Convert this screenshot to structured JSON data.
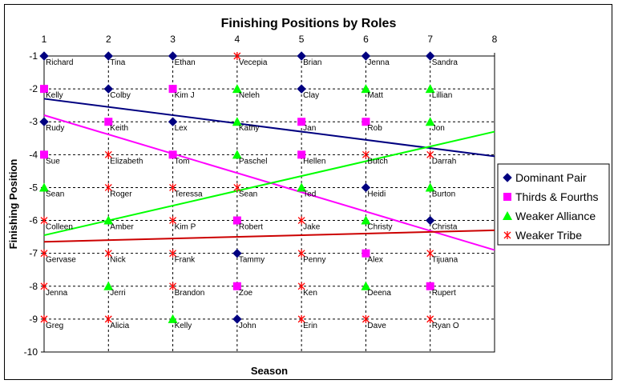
{
  "chart_data": {
    "type": "scatter",
    "title": "Finishing Positions by Roles",
    "xlabel": "Season",
    "ylabel": "Finishing Position",
    "xlim": [
      1,
      8
    ],
    "ylim": [
      -10,
      -1
    ],
    "x_ticks": [
      "1",
      "2",
      "3",
      "4",
      "5",
      "6",
      "7",
      "8"
    ],
    "y_ticks": [
      "-1",
      "-2",
      "-3",
      "-4",
      "-5",
      "-6",
      "-7",
      "-8",
      "-9",
      "-10"
    ],
    "grid": true,
    "legend_position": "right",
    "series": [
      {
        "name": "Dominant Pair",
        "marker": "diamond",
        "color": "#000080",
        "points": [
          {
            "x": 1,
            "y": -1,
            "label": "Richard"
          },
          {
            "x": 2,
            "y": -1,
            "label": "Tina"
          },
          {
            "x": 3,
            "y": -1,
            "label": "Ethan"
          },
          {
            "x": 5,
            "y": -1,
            "label": "Brian"
          },
          {
            "x": 6,
            "y": -1,
            "label": "Jenna"
          },
          {
            "x": 7,
            "y": -1,
            "label": "Sandra"
          },
          {
            "x": 2,
            "y": -2,
            "label": "Colby"
          },
          {
            "x": 5,
            "y": -2,
            "label": "Clay"
          },
          {
            "x": 1,
            "y": -3,
            "label": "Rudy"
          },
          {
            "x": 3,
            "y": -3,
            "label": "Lex"
          },
          {
            "x": 6,
            "y": -5,
            "label": "Heidi"
          },
          {
            "x": 7,
            "y": -6,
            "label": "Christa"
          },
          {
            "x": 4,
            "y": -7,
            "label": "Tammy"
          },
          {
            "x": 4,
            "y": -9,
            "label": "John"
          }
        ],
        "trend": [
          -2.3,
          -4.05
        ]
      },
      {
        "name": "Thirds & Fourths",
        "marker": "square",
        "color": "#FF00FF",
        "points": [
          {
            "x": 1,
            "y": -2,
            "label": "Kelly"
          },
          {
            "x": 3,
            "y": -2,
            "label": "Kim J"
          },
          {
            "x": 2,
            "y": -3,
            "label": "Keith"
          },
          {
            "x": 5,
            "y": -3,
            "label": "Jan"
          },
          {
            "x": 6,
            "y": -3,
            "label": "Rob"
          },
          {
            "x": 1,
            "y": -4,
            "label": "Sue"
          },
          {
            "x": 3,
            "y": -4,
            "label": "Tom"
          },
          {
            "x": 5,
            "y": -4,
            "label": "Hellen"
          },
          {
            "x": 4,
            "y": -6,
            "label": "Robert"
          },
          {
            "x": 6,
            "y": -7,
            "label": "Alex"
          },
          {
            "x": 4,
            "y": -8,
            "label": "Zoe"
          },
          {
            "x": 7,
            "y": -8,
            "label": "Rupert"
          }
        ],
        "trend": [
          -2.8,
          -6.9
        ]
      },
      {
        "name": "Weaker Alliance",
        "marker": "triangle",
        "color": "#00FF00",
        "points": [
          {
            "x": 4,
            "y": -2,
            "label": "Neleh"
          },
          {
            "x": 6,
            "y": -2,
            "label": "Matt"
          },
          {
            "x": 7,
            "y": -2,
            "label": "Lillian"
          },
          {
            "x": 4,
            "y": -3,
            "label": "Kathy"
          },
          {
            "x": 7,
            "y": -3,
            "label": "Jon"
          },
          {
            "x": 4,
            "y": -4,
            "label": "Paschel"
          },
          {
            "x": 1,
            "y": -5,
            "label": "Sean"
          },
          {
            "x": 5,
            "y": -5,
            "label": "Ted"
          },
          {
            "x": 7,
            "y": -5,
            "label": "Burton"
          },
          {
            "x": 2,
            "y": -6,
            "label": "Amber"
          },
          {
            "x": 6,
            "y": -6,
            "label": "Christy"
          },
          {
            "x": 2,
            "y": -8,
            "label": "Jerri"
          },
          {
            "x": 6,
            "y": -8,
            "label": "Deena"
          },
          {
            "x": 3,
            "y": -9,
            "label": "Kelly"
          }
        ],
        "trend": [
          -6.45,
          -3.3
        ]
      },
      {
        "name": "Weaker Tribe",
        "marker": "asterisk",
        "color": "#FF0000",
        "points": [
          {
            "x": 4,
            "y": -1,
            "label": "Vecepia"
          },
          {
            "x": 2,
            "y": -4,
            "label": "Elizabeth"
          },
          {
            "x": 6,
            "y": -4,
            "label": "Butch"
          },
          {
            "x": 7,
            "y": -4,
            "label": "Darrah"
          },
          {
            "x": 2,
            "y": -5,
            "label": "Roger"
          },
          {
            "x": 3,
            "y": -5,
            "label": "Teressa"
          },
          {
            "x": 4,
            "y": -5,
            "label": "Sean"
          },
          {
            "x": 1,
            "y": -6,
            "label": "Colleen"
          },
          {
            "x": 3,
            "y": -6,
            "label": "Kim P"
          },
          {
            "x": 5,
            "y": -6,
            "label": "Jake"
          },
          {
            "x": 1,
            "y": -7,
            "label": "Gervase"
          },
          {
            "x": 2,
            "y": -7,
            "label": "Nick"
          },
          {
            "x": 3,
            "y": -7,
            "label": "Frank"
          },
          {
            "x": 5,
            "y": -7,
            "label": "Penny"
          },
          {
            "x": 7,
            "y": -7,
            "label": "Tijuana"
          },
          {
            "x": 1,
            "y": -8,
            "label": "Jenna"
          },
          {
            "x": 3,
            "y": -8,
            "label": "Brandon"
          },
          {
            "x": 5,
            "y": -8,
            "label": "Ken"
          },
          {
            "x": 1,
            "y": -9,
            "label": "Greg"
          },
          {
            "x": 2,
            "y": -9,
            "label": "Alicia"
          },
          {
            "x": 5,
            "y": -9,
            "label": "Erin"
          },
          {
            "x": 6,
            "y": -9,
            "label": "Dave"
          },
          {
            "x": 7,
            "y": -9,
            "label": "Ryan O"
          }
        ],
        "trend": [
          -6.65,
          -6.3
        ],
        "trend_color": "#CC0000"
      }
    ]
  }
}
